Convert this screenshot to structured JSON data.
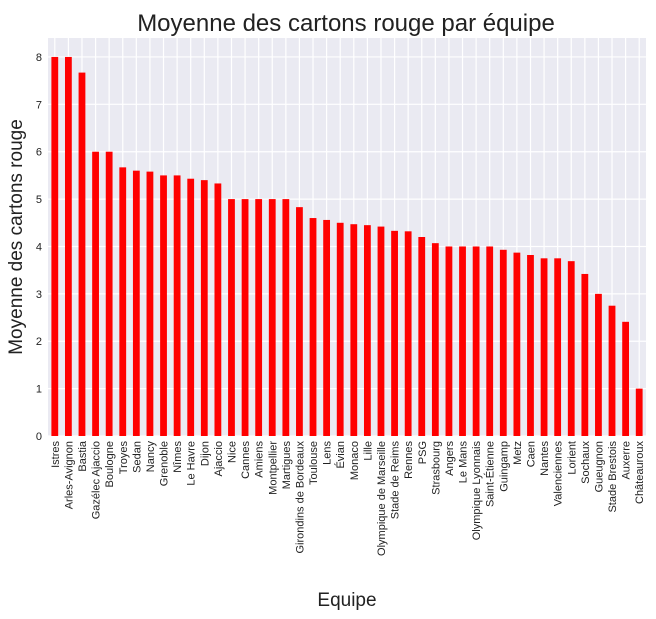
{
  "chart_data": {
    "type": "bar",
    "title": "Moyenne des cartons rouge par équipe",
    "xlabel": "Equipe",
    "ylabel": "Moyenne des  cartons rouge",
    "ylim": [
      0,
      8.4
    ],
    "yticks": [
      0,
      1,
      2,
      3,
      4,
      5,
      6,
      7,
      8
    ],
    "grid": true,
    "bar_color": "#ff0000",
    "background_color": "#eaeaf2",
    "categories": [
      "Istres",
      "Arles-Avignon",
      "Bastia",
      "Gazélec Ajaccio",
      "Boulogne",
      "Troyes",
      "Sedan",
      "Nancy",
      "Grenoble",
      "Nîmes",
      "Le Havre",
      "Dijon",
      "Ajaccio",
      "Nice",
      "Cannes",
      "Amiens",
      "Montpellier",
      "Martigues",
      "Girondins de Bordeaux",
      "Toulouse",
      "Lens",
      "Évian",
      "Monaco",
      "Lille",
      "Olympique de Marseille",
      "Stade de Reims",
      "Rennes",
      "PSG",
      "Strasbourg",
      "Angers",
      "Le Mans",
      "Olympique Lyonnais",
      "Saint-Étienne",
      "Guingamp",
      "Metz",
      "Caen",
      "Nantes",
      "Valenciennes",
      "Lorient",
      "Sochaux",
      "Gueugnon",
      "Stade Brestois",
      "Auxerre",
      "Châteauroux"
    ],
    "values": [
      8.0,
      8.0,
      7.67,
      6.0,
      6.0,
      5.67,
      5.6,
      5.58,
      5.5,
      5.5,
      5.43,
      5.4,
      5.33,
      5.0,
      5.0,
      5.0,
      5.0,
      5.0,
      4.83,
      4.6,
      4.56,
      4.5,
      4.47,
      4.45,
      4.42,
      4.33,
      4.32,
      4.2,
      4.07,
      4.0,
      4.0,
      4.0,
      4.0,
      3.93,
      3.87,
      3.82,
      3.75,
      3.75,
      3.69,
      3.42,
      3.0,
      2.75,
      2.41,
      1.0
    ]
  }
}
